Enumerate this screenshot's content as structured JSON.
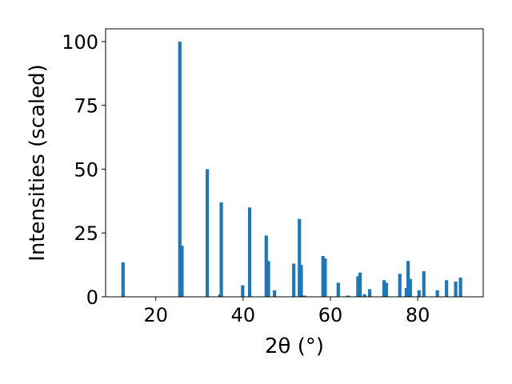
{
  "chart_data": {
    "type": "bar",
    "xlabel": "2θ (°)",
    "ylabel": "Intensities (scaled)",
    "xlim": [
      8.5,
      95
    ],
    "ylim": [
      0,
      105
    ],
    "xticks": [
      20,
      40,
      60,
      80
    ],
    "yticks": [
      0,
      25,
      50,
      75,
      100
    ],
    "grid": false,
    "bar_color": "#1f77b4",
    "x": [
      12.5,
      25.5,
      26.0,
      31.8,
      34.7,
      35.0,
      39.9,
      41.5,
      45.3,
      45.8,
      47.2,
      51.6,
      52.9,
      53.3,
      54.0,
      58.3,
      58.8,
      61.8,
      64.1,
      66.3,
      66.8,
      67.8,
      69.0,
      72.3,
      72.8,
      75.9,
      77.4,
      77.8,
      78.3,
      80.3,
      81.4,
      84.5,
      86.6,
      88.7,
      89.8
    ],
    "values": [
      13.5,
      100,
      20,
      50,
      1,
      37,
      4.5,
      35,
      24,
      14,
      2.5,
      13,
      30.5,
      12.5,
      0.5,
      16,
      15,
      5.5,
      0.5,
      8,
      9.5,
      1,
      3,
      6.5,
      5.5,
      9,
      3.5,
      14,
      7,
      2.5,
      10,
      2.5,
      6.5,
      6,
      7.5
    ]
  }
}
